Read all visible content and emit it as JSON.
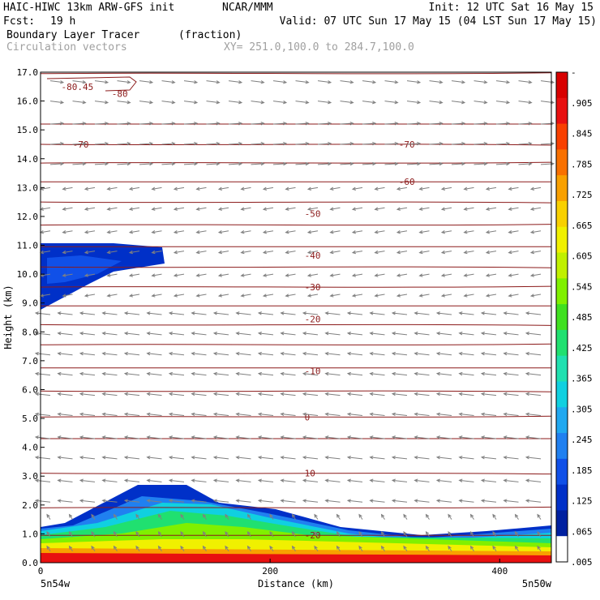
{
  "header": {
    "model": "HAIC-HIWC 13km ARW-GFS init",
    "center": "NCAR/MMM",
    "init": "Init: 12 UTC Sat 16 May 15",
    "fcst_label": "Fcst:",
    "fcst_value": "19 h",
    "valid": "Valid: 07 UTC Sun 17 May 15 (04 LST Sun 17 May 15)",
    "field1": "Boundary Layer Tracer",
    "field1_units": "(fraction)",
    "field2": "Circulation vectors",
    "xsec": "XY= 251.0,100.0 to 284.7,100.0"
  },
  "colors": {
    "contour": "#8b1a1a",
    "vector": "#808080",
    "tracer_scale": [
      "#ffffff",
      "#0020a0",
      "#0030c8",
      "#1050e8",
      "#2080f0",
      "#20a8f0",
      "#10d0e0",
      "#20e0b0",
      "#20e070",
      "#40e020",
      "#80f000",
      "#c0f000",
      "#f0f000",
      "#f8d000",
      "#f8a000",
      "#f87000",
      "#f84000",
      "#e81010",
      "#d80000"
    ]
  },
  "chart_data": {
    "type": "cross-section contour",
    "xlabel": "Distance (km)",
    "ylabel": "Height (km)",
    "xlim": [
      0,
      445
    ],
    "ylim": [
      0,
      17
    ],
    "x_ticks": [
      0,
      200,
      400
    ],
    "y_ticks": [
      "0.0",
      "1.0",
      "2.0",
      "3.0",
      "4.0",
      "5.0",
      "6.0",
      "7.0",
      "8.0",
      "9.0",
      "10.0",
      "11.0",
      "12.0",
      "13.0",
      "14.0",
      "15.0",
      "16.0",
      "17.0"
    ],
    "x_endpoints": [
      "5n54w",
      "5n50w"
    ],
    "colorbar_labels": [
      "-",
      ".905",
      ".845",
      ".785",
      ".725",
      ".665",
      ".605",
      ".545",
      ".485",
      ".425",
      ".365",
      ".305",
      ".245",
      ".185",
      ".125",
      ".065",
      ".005"
    ],
    "contour_labels": [
      {
        "text": "-80.45",
        "x": 18,
        "y": 16.5
      },
      {
        "text": "-80",
        "x": 62,
        "y": 16.25
      },
      {
        "text": "-70",
        "x": 28,
        "y": 14.5
      },
      {
        "text": "-70",
        "x": 312,
        "y": 14.5
      },
      {
        "text": "-60",
        "x": 312,
        "y": 13.2
      },
      {
        "text": "-50",
        "x": 230,
        "y": 12.1
      },
      {
        "text": "-40",
        "x": 230,
        "y": 10.65
      },
      {
        "text": "-30",
        "x": 230,
        "y": 9.55
      },
      {
        "text": "-20",
        "x": 230,
        "y": 8.45
      },
      {
        "text": "-10",
        "x": 230,
        "y": 6.65
      },
      {
        "text": "0",
        "x": 230,
        "y": 5.05
      },
      {
        "text": "10",
        "x": 230,
        "y": 3.1
      },
      {
        "text": "-20",
        "x": 230,
        "y": 0.95
      }
    ],
    "temperature_contours_y": [
      16.95,
      15.2,
      14.5,
      13.85,
      13.2,
      12.5,
      11.7,
      10.95,
      10.25,
      9.55,
      8.9,
      8.25,
      7.55,
      6.75,
      5.95,
      5.05,
      4.3,
      3.1,
      1.9,
      0.95
    ]
  }
}
